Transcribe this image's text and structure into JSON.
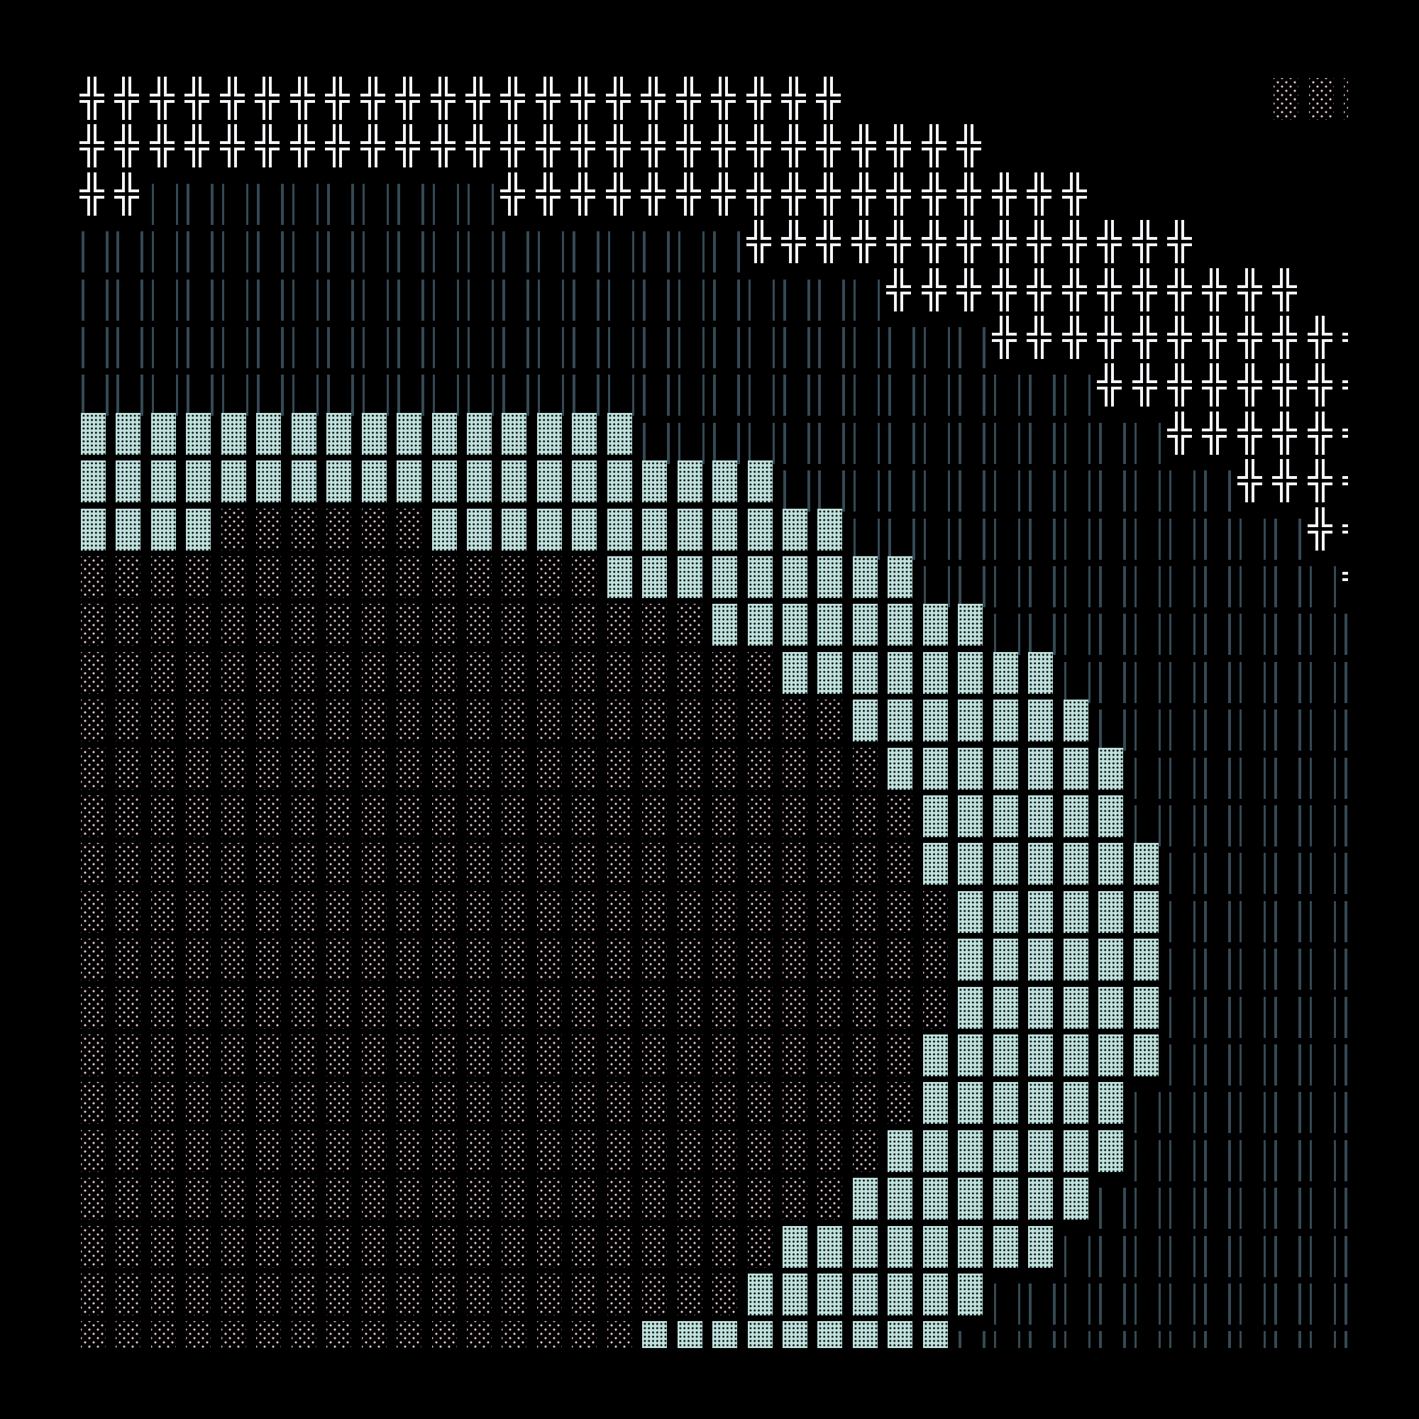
{
  "colors": {
    "background": "#000000",
    "double_cross": "#f4f4f8",
    "double_vertical": "#344a55",
    "dark_shade": "#bfe0dc",
    "light_shade": "#e2c2d2"
  },
  "glyphs": {
    "double_cross": "╬",
    "double_vertical": "║",
    "dark_shade": "▓",
    "light_shade": "░",
    "blank": " "
  },
  "rows": [
    [
      [
        "╬",
        22
      ],
      [
        " ",
        12
      ],
      [
        "░",
        3
      ]
    ],
    [
      [
        "╬",
        26
      ],
      [
        " ",
        11
      ]
    ],
    [
      [
        "╬",
        2
      ],
      [
        "║",
        10
      ],
      [
        "╬",
        17
      ],
      [
        " ",
        8
      ]
    ],
    [
      [
        "║",
        19
      ],
      [
        "╬",
        13
      ],
      [
        " ",
        5
      ]
    ],
    [
      [
        "║",
        23
      ],
      [
        "╬",
        12
      ],
      [
        " ",
        2
      ]
    ],
    [
      [
        "║",
        26
      ],
      [
        "╬",
        11
      ]
    ],
    [
      [
        "║",
        29
      ],
      [
        "╬",
        8
      ]
    ],
    [
      [
        "▓",
        16
      ],
      [
        "║",
        15
      ],
      [
        "╬",
        6
      ]
    ],
    [
      [
        "▓",
        20
      ],
      [
        "║",
        13
      ],
      [
        "╬",
        4
      ]
    ],
    [
      [
        "▓",
        4
      ],
      [
        "░",
        6
      ],
      [
        "▓",
        12
      ],
      [
        "║",
        13
      ],
      [
        "╬",
        2
      ]
    ],
    [
      [
        "░",
        15
      ],
      [
        "▓",
        9
      ],
      [
        "║",
        12
      ],
      [
        "╬",
        1
      ]
    ],
    [
      [
        "░",
        18
      ],
      [
        "▓",
        8
      ],
      [
        "║",
        11
      ]
    ],
    [
      [
        "░",
        20
      ],
      [
        "▓",
        8
      ],
      [
        "║",
        9
      ]
    ],
    [
      [
        "░",
        22
      ],
      [
        "▓",
        7
      ],
      [
        "║",
        8
      ]
    ],
    [
      [
        "░",
        23
      ],
      [
        "▓",
        7
      ],
      [
        "║",
        7
      ]
    ],
    [
      [
        "░",
        24
      ],
      [
        "▓",
        6
      ],
      [
        "║",
        7
      ]
    ],
    [
      [
        "░",
        24
      ],
      [
        "▓",
        7
      ],
      [
        "║",
        6
      ]
    ],
    [
      [
        "░",
        25
      ],
      [
        "▓",
        6
      ],
      [
        "║",
        6
      ]
    ],
    [
      [
        "░",
        25
      ],
      [
        "▓",
        6
      ],
      [
        "║",
        6
      ]
    ],
    [
      [
        "░",
        25
      ],
      [
        "▓",
        6
      ],
      [
        "║",
        6
      ]
    ],
    [
      [
        "░",
        24
      ],
      [
        "▓",
        7
      ],
      [
        "║",
        6
      ]
    ],
    [
      [
        "░",
        24
      ],
      [
        "▓",
        6
      ],
      [
        "║",
        7
      ]
    ],
    [
      [
        "░",
        23
      ],
      [
        "▓",
        7
      ],
      [
        "║",
        7
      ]
    ],
    [
      [
        "░",
        22
      ],
      [
        "▓",
        7
      ],
      [
        "║",
        8
      ]
    ],
    [
      [
        "░",
        20
      ],
      [
        "▓",
        8
      ],
      [
        "║",
        9
      ]
    ],
    [
      [
        "░",
        19
      ],
      [
        "▓",
        7
      ],
      [
        "║",
        11
      ]
    ],
    [
      [
        "░",
        16
      ],
      [
        "▓",
        9
      ],
      [
        "║",
        12
      ]
    ]
  ]
}
